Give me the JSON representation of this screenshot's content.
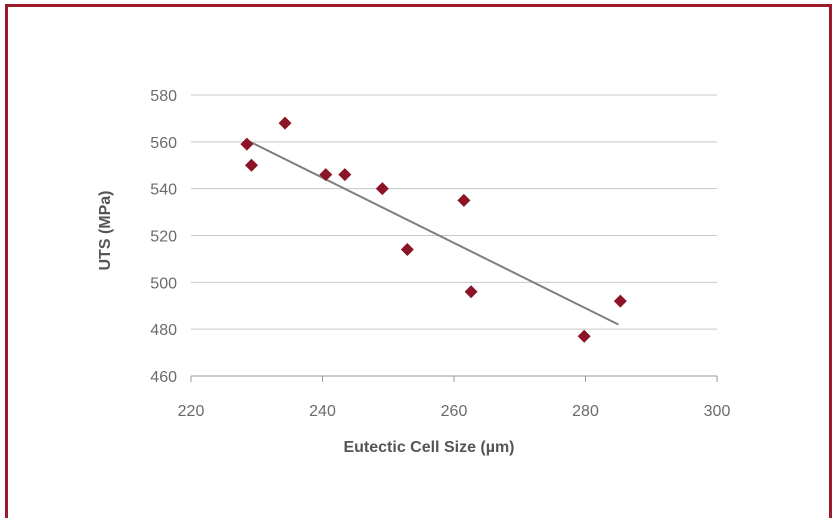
{
  "chart_data": {
    "type": "scatter",
    "xlabel": "Eutectic Cell Size (µm)",
    "ylabel": "UTS (MPa)",
    "xlim": [
      220,
      300
    ],
    "ylim": [
      460,
      580
    ],
    "x_ticks": [
      220,
      240,
      260,
      280,
      300
    ],
    "y_ticks": [
      460,
      480,
      500,
      520,
      540,
      560,
      580
    ],
    "grid": "horizontal",
    "legend": "none",
    "marker": "diamond",
    "colors": {
      "marker": "#8b1526",
      "trendline": "#7f7f7f",
      "grid": "#c8c8c8",
      "frame": "#9b1b2a"
    },
    "series": [
      {
        "x": [
          228.5,
          229.2,
          234.3,
          240.5,
          243.4,
          249.1,
          252.9,
          261.5,
          262.6,
          279.8,
          285.3
        ],
        "y": [
          559,
          550,
          568,
          546,
          546,
          540,
          514,
          535,
          496,
          477,
          492
        ]
      }
    ],
    "trendline": {
      "x": [
        229,
        285
      ],
      "y": [
        560,
        482
      ]
    }
  }
}
